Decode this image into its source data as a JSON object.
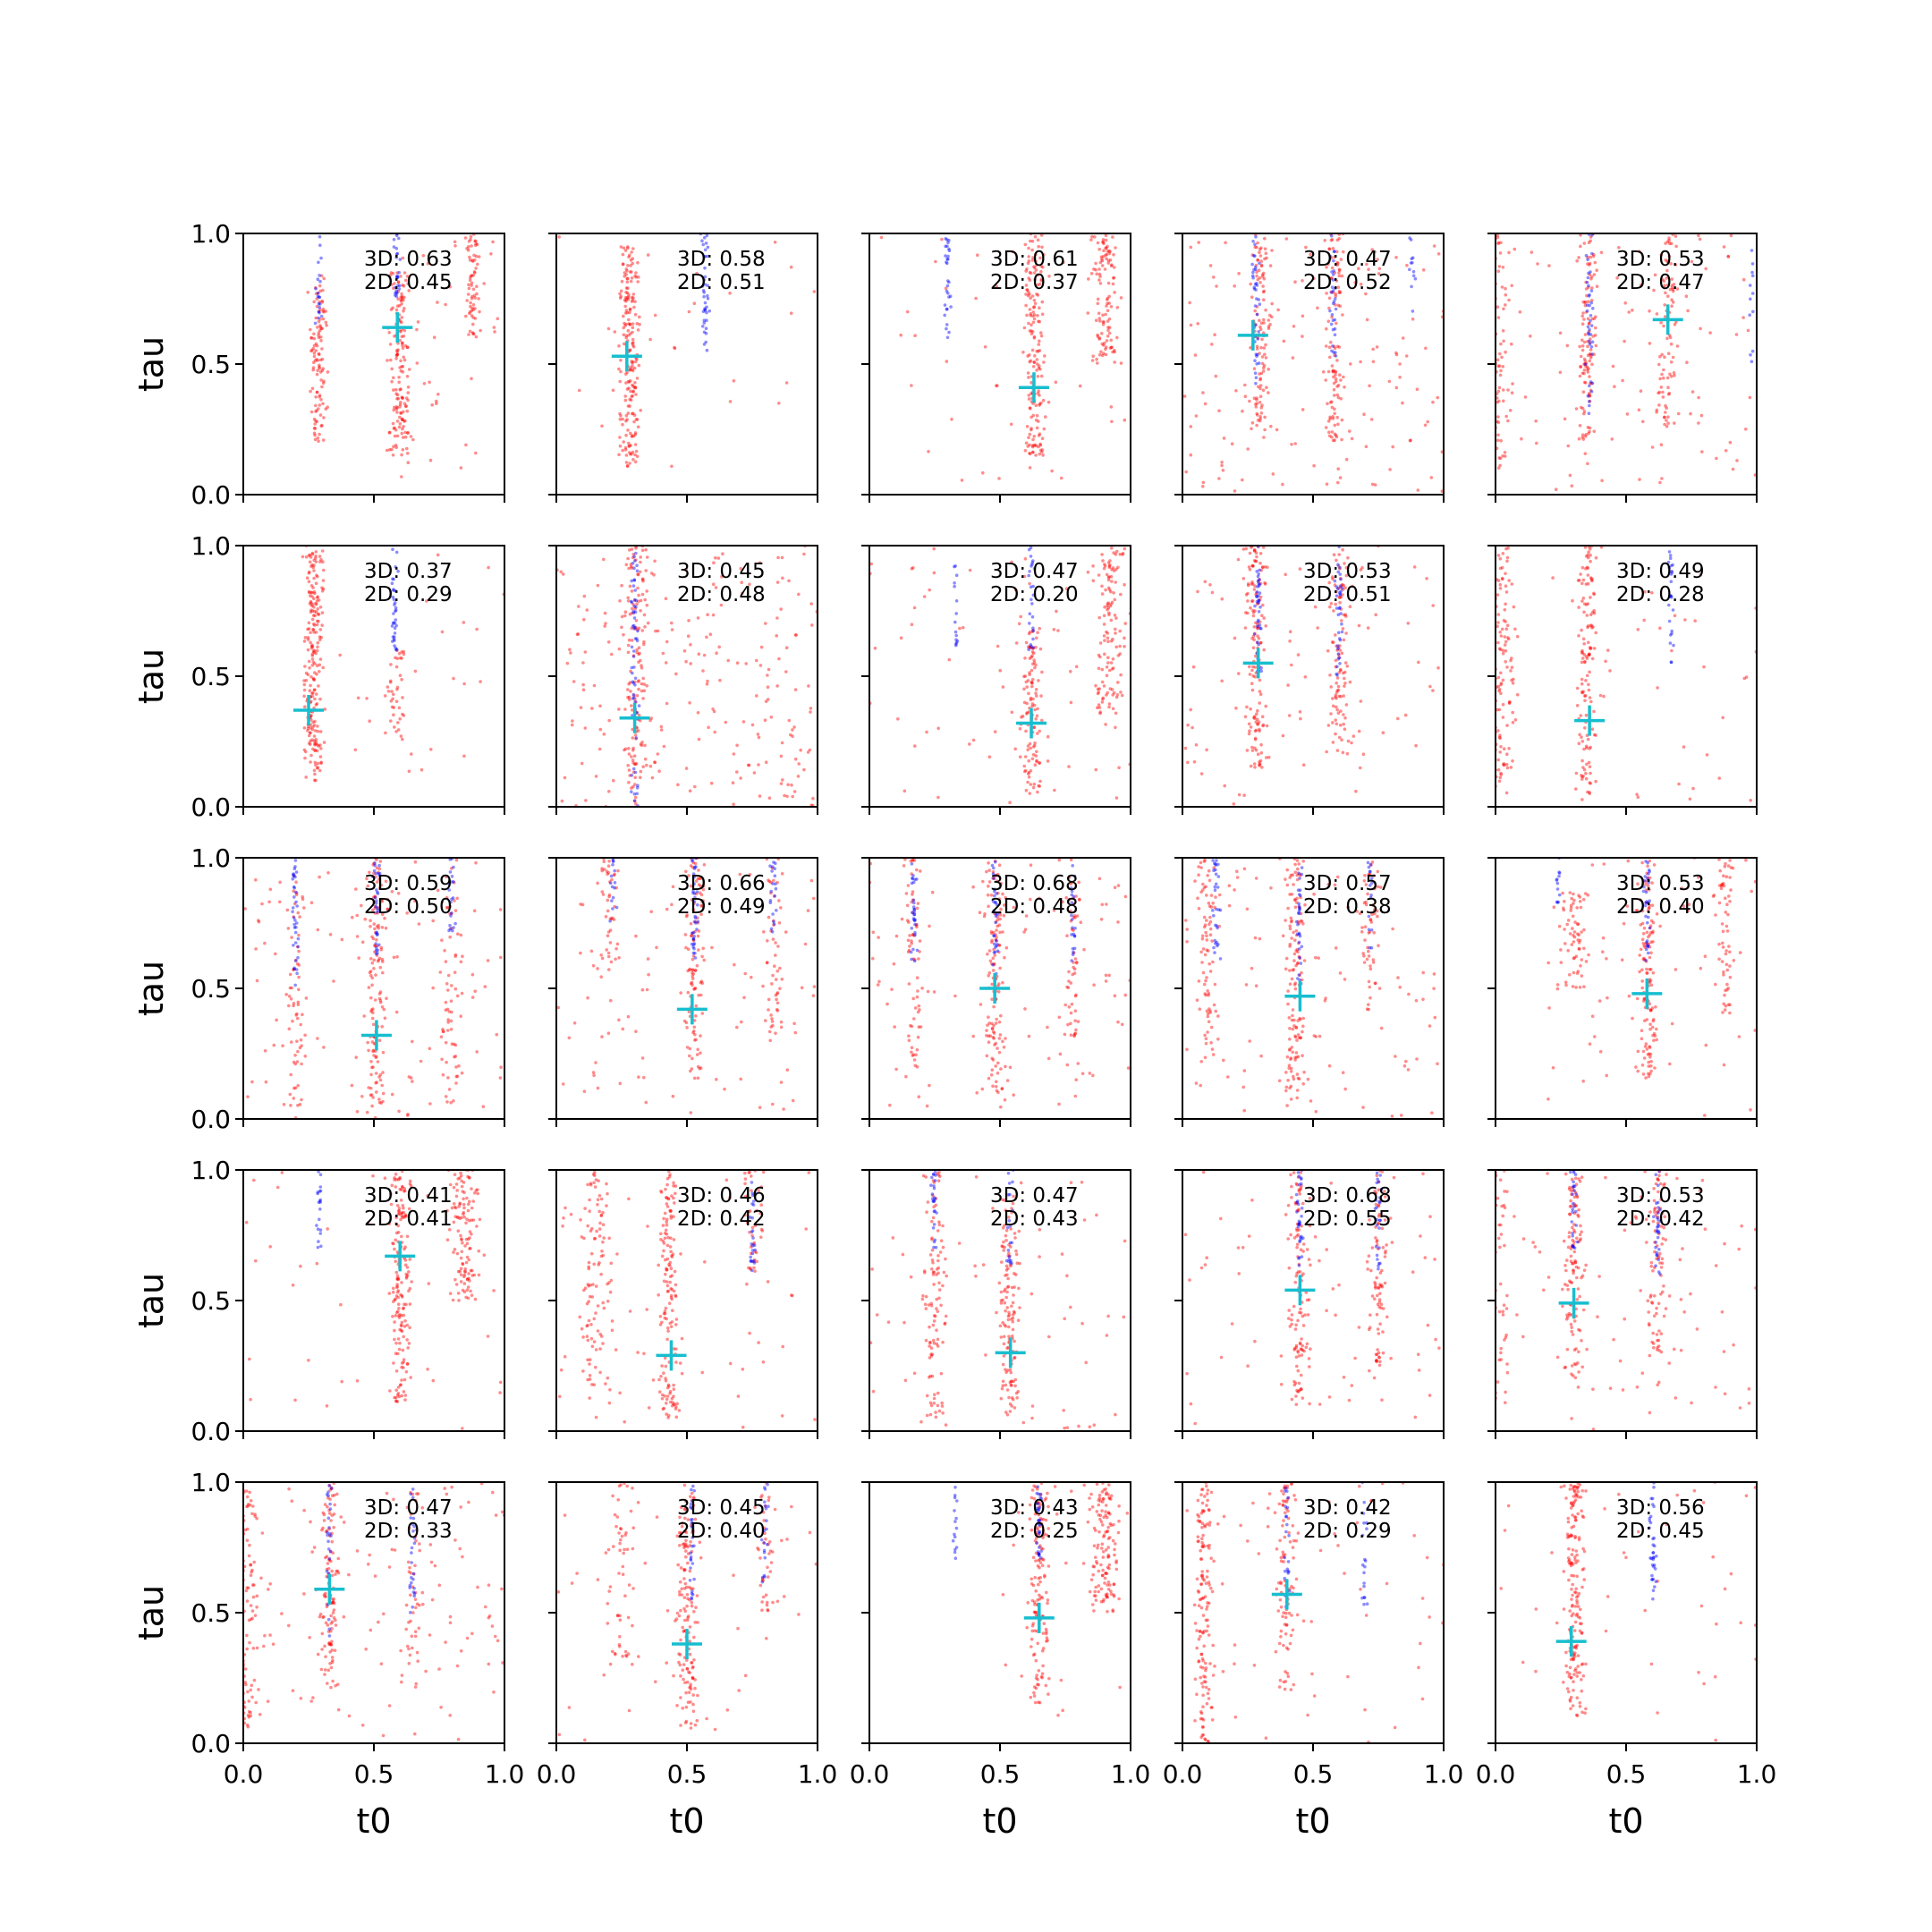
{
  "chart_data": {
    "type": "scatter",
    "layout": {
      "rows": 5,
      "cols": 5
    },
    "xlabel": "t0",
    "ylabel": "tau",
    "xlim": [
      0,
      1
    ],
    "ylim": [
      0,
      1
    ],
    "xticks": [
      "0.0",
      "0.5",
      "1.0"
    ],
    "yticks": [
      "0.0",
      "0.5",
      "1.0"
    ],
    "grid": false,
    "colors": {
      "red": "#ff0000",
      "blue": "#0000ff",
      "marker": "#17becf"
    },
    "panels": [
      {
        "a3d": "3D: 0.63",
        "a2d": "2D: 0.45",
        "marker": [
          0.59,
          0.64
        ],
        "red": [
          [
            0.29,
            0.2,
            0.85,
            1.0,
            110
          ],
          [
            0.6,
            0.15,
            0.85,
            1.0,
            150
          ],
          [
            0.88,
            0.6,
            1.0,
            0.8,
            60
          ]
        ],
        "blue": [
          [
            0.59,
            0.75,
            1.0,
            0.5,
            25
          ],
          [
            0.29,
            0.6,
            1.0,
            0.5,
            20
          ]
        ],
        "bg": [
          0.55,
          0.05,
          1.0,
          45
        ]
      },
      {
        "a3d": "3D: 0.58",
        "a2d": "2D: 0.51",
        "marker": [
          0.27,
          0.53
        ],
        "red": [
          [
            0.28,
            0.1,
            0.95,
            1.0,
            200
          ]
        ],
        "blue": [
          [
            0.57,
            0.55,
            1.0,
            0.8,
            40
          ]
        ],
        "bg": [
          0.0,
          0.1,
          1.0,
          25
        ]
      },
      {
        "a3d": "3D: 0.61",
        "a2d": "2D: 0.37",
        "marker": [
          0.63,
          0.41
        ],
        "red": [
          [
            0.63,
            0.15,
            1.0,
            1.0,
            170
          ],
          [
            0.9,
            0.5,
            1.0,
            1.5,
            110
          ]
        ],
        "blue": [
          [
            0.3,
            0.6,
            1.0,
            0.5,
            30
          ]
        ],
        "bg": [
          0.0,
          0.05,
          1.0,
          40
        ]
      },
      {
        "a3d": "3D: 0.47",
        "a2d": "2D: 0.52",
        "marker": [
          0.27,
          0.61
        ],
        "red": [
          [
            0.3,
            0.2,
            1.0,
            1.0,
            110
          ],
          [
            0.58,
            0.2,
            1.0,
            1.0,
            110
          ]
        ],
        "blue": [
          [
            0.28,
            0.4,
            1.0,
            0.6,
            40
          ],
          [
            0.58,
            0.5,
            1.0,
            0.6,
            30
          ],
          [
            0.88,
            0.7,
            1.0,
            0.5,
            12
          ]
        ],
        "bg": [
          0.0,
          0.0,
          1.0,
          130
        ]
      },
      {
        "a3d": "3D: 0.53",
        "a2d": "2D: 0.47",
        "marker": [
          0.66,
          0.67
        ],
        "red": [
          [
            0.35,
            0.2,
            1.0,
            1.0,
            110
          ],
          [
            0.66,
            0.25,
            1.0,
            1.0,
            80
          ],
          [
            0.02,
            0.1,
            1.0,
            1.0,
            60
          ]
        ],
        "blue": [
          [
            0.36,
            0.3,
            1.0,
            0.6,
            40
          ],
          [
            0.98,
            0.5,
            1.0,
            0.5,
            12
          ]
        ],
        "bg": [
          0.0,
          0.0,
          1.0,
          100
        ]
      },
      {
        "a3d": "3D: 0.37",
        "a2d": "2D: 0.29",
        "marker": [
          0.25,
          0.37
        ],
        "red": [
          [
            0.27,
            0.1,
            1.0,
            1.0,
            220
          ],
          [
            0.58,
            0.25,
            0.6,
            1.0,
            40
          ]
        ],
        "blue": [
          [
            0.58,
            0.6,
            1.0,
            0.5,
            35
          ]
        ],
        "bg": [
          0.2,
          0.1,
          1.0,
          25
        ]
      },
      {
        "a3d": "3D: 0.45",
        "a2d": "2D: 0.48",
        "marker": [
          0.3,
          0.34
        ],
        "red": [
          [
            0.3,
            0.0,
            1.0,
            1.2,
            130
          ]
        ],
        "blue": [
          [
            0.3,
            0.0,
            1.0,
            0.6,
            60
          ]
        ],
        "bg": [
          0.0,
          0.0,
          1.0,
          220
        ]
      },
      {
        "a3d": "3D: 0.47",
        "a2d": "2D: 0.20",
        "marker": [
          0.62,
          0.32
        ],
        "red": [
          [
            0.62,
            0.05,
            0.7,
            1.0,
            110
          ],
          [
            0.92,
            0.3,
            1.0,
            1.5,
            120
          ]
        ],
        "blue": [
          [
            0.62,
            0.6,
            1.0,
            0.5,
            25
          ],
          [
            0.33,
            0.6,
            0.95,
            0.3,
            15
          ]
        ],
        "bg": [
          0.0,
          0.0,
          1.0,
          70
        ]
      },
      {
        "a3d": "3D: 0.53",
        "a2d": "2D: 0.51",
        "marker": [
          0.29,
          0.55
        ],
        "red": [
          [
            0.28,
            0.15,
            1.0,
            1.0,
            140
          ],
          [
            0.6,
            0.2,
            1.0,
            1.0,
            100
          ]
        ],
        "blue": [
          [
            0.29,
            0.5,
            1.0,
            0.6,
            40
          ],
          [
            0.6,
            0.5,
            1.0,
            0.6,
            35
          ]
        ],
        "bg": [
          0.0,
          0.0,
          1.0,
          80
        ]
      },
      {
        "a3d": "3D: 0.49",
        "a2d": "2D: 0.28",
        "marker": [
          0.36,
          0.33
        ],
        "red": [
          [
            0.35,
            0.05,
            1.0,
            1.0,
            130
          ],
          [
            0.03,
            0.05,
            1.0,
            1.2,
            110
          ]
        ],
        "blue": [
          [
            0.67,
            0.55,
            1.0,
            0.4,
            25
          ]
        ],
        "bg": [
          0.0,
          0.0,
          1.0,
          40
        ]
      },
      {
        "a3d": "3D: 0.59",
        "a2d": "2D: 0.50",
        "marker": [
          0.51,
          0.32
        ],
        "red": [
          [
            0.51,
            0.05,
            1.0,
            1.0,
            130
          ],
          [
            0.2,
            0.05,
            1.0,
            1.0,
            60
          ],
          [
            0.8,
            0.05,
            1.0,
            1.0,
            60
          ]
        ],
        "blue": [
          [
            0.2,
            0.5,
            1.0,
            0.5,
            35
          ],
          [
            0.51,
            0.6,
            1.0,
            0.5,
            30
          ],
          [
            0.8,
            0.7,
            1.0,
            0.5,
            20
          ]
        ],
        "bg": [
          0.0,
          0.0,
          1.0,
          110
        ]
      },
      {
        "a3d": "3D: 0.66",
        "a2d": "2D: 0.49",
        "marker": [
          0.52,
          0.42
        ],
        "red": [
          [
            0.53,
            0.15,
            1.0,
            1.0,
            110
          ],
          [
            0.83,
            0.3,
            1.0,
            1.0,
            50
          ],
          [
            0.2,
            0.6,
            1.0,
            1.0,
            40
          ]
        ],
        "blue": [
          [
            0.53,
            0.6,
            1.0,
            0.5,
            35
          ],
          [
            0.83,
            0.7,
            1.0,
            0.5,
            20
          ],
          [
            0.22,
            0.7,
            1.0,
            0.5,
            15
          ]
        ],
        "bg": [
          0.0,
          0.0,
          1.0,
          80
        ]
      },
      {
        "a3d": "3D: 0.68",
        "a2d": "2D: 0.48",
        "marker": [
          0.48,
          0.5
        ],
        "red": [
          [
            0.48,
            0.1,
            1.0,
            1.0,
            120
          ],
          [
            0.17,
            0.2,
            1.0,
            1.0,
            60
          ],
          [
            0.78,
            0.3,
            1.0,
            1.0,
            50
          ]
        ],
        "blue": [
          [
            0.17,
            0.6,
            1.0,
            0.5,
            30
          ],
          [
            0.48,
            0.55,
            1.0,
            0.5,
            30
          ],
          [
            0.78,
            0.6,
            1.0,
            0.5,
            20
          ]
        ],
        "bg": [
          0.0,
          0.0,
          1.0,
          100
        ]
      },
      {
        "a3d": "3D: 0.57",
        "a2d": "2D: 0.38",
        "marker": [
          0.45,
          0.47
        ],
        "red": [
          [
            0.43,
            0.05,
            1.0,
            1.0,
            130
          ],
          [
            0.1,
            0.2,
            1.0,
            1.2,
            80
          ],
          [
            0.72,
            0.4,
            1.0,
            1.0,
            50
          ]
        ],
        "blue": [
          [
            0.13,
            0.6,
            1.0,
            0.5,
            30
          ],
          [
            0.45,
            0.5,
            1.0,
            0.5,
            30
          ],
          [
            0.72,
            0.65,
            1.0,
            0.5,
            15
          ]
        ],
        "bg": [
          0.0,
          0.0,
          1.0,
          90
        ]
      },
      {
        "a3d": "3D: 0.53",
        "a2d": "2D: 0.40",
        "marker": [
          0.58,
          0.48
        ],
        "red": [
          [
            0.58,
            0.15,
            1.0,
            1.0,
            130
          ],
          [
            0.88,
            0.4,
            1.0,
            1.0,
            60
          ],
          [
            0.3,
            0.5,
            0.9,
            1.5,
            60
          ]
        ],
        "blue": [
          [
            0.58,
            0.6,
            1.0,
            0.5,
            30
          ],
          [
            0.24,
            0.8,
            1.0,
            0.3,
            12
          ]
        ],
        "bg": [
          0.15,
          0.0,
          1.0,
          60
        ]
      },
      {
        "a3d": "3D: 0.41",
        "a2d": "2D: 0.41",
        "marker": [
          0.6,
          0.67
        ],
        "red": [
          [
            0.6,
            0.1,
            1.0,
            1.0,
            170
          ],
          [
            0.85,
            0.5,
            1.0,
            1.5,
            120
          ]
        ],
        "blue": [
          [
            0.29,
            0.7,
            1.0,
            0.4,
            20
          ]
        ],
        "bg": [
          0.0,
          0.0,
          1.0,
          40
        ]
      },
      {
        "a3d": "3D: 0.46",
        "a2d": "2D: 0.42",
        "marker": [
          0.44,
          0.29
        ],
        "red": [
          [
            0.43,
            0.05,
            1.0,
            1.0,
            140
          ],
          [
            0.15,
            0.1,
            1.0,
            1.5,
            100
          ],
          [
            0.75,
            0.6,
            1.0,
            1.0,
            40
          ]
        ],
        "blue": [
          [
            0.75,
            0.6,
            1.0,
            0.5,
            25
          ]
        ],
        "bg": [
          0.0,
          0.0,
          1.0,
          60
        ]
      },
      {
        "a3d": "3D: 0.47",
        "a2d": "2D: 0.43",
        "marker": [
          0.54,
          0.3
        ],
        "red": [
          [
            0.54,
            0.05,
            0.9,
            1.0,
            130
          ],
          [
            0.25,
            0.05,
            1.0,
            1.2,
            100
          ]
        ],
        "blue": [
          [
            0.25,
            0.7,
            1.0,
            0.5,
            25
          ],
          [
            0.54,
            0.6,
            1.0,
            0.5,
            20
          ]
        ],
        "bg": [
          0.0,
          0.0,
          1.0,
          60
        ]
      },
      {
        "a3d": "3D: 0.68",
        "a2d": "2D: 0.55",
        "marker": [
          0.45,
          0.54
        ],
        "red": [
          [
            0.45,
            0.1,
            1.0,
            1.0,
            110
          ],
          [
            0.75,
            0.2,
            1.0,
            1.0,
            80
          ]
        ],
        "blue": [
          [
            0.45,
            0.6,
            1.0,
            0.5,
            30
          ],
          [
            0.75,
            0.6,
            1.0,
            0.5,
            25
          ]
        ],
        "bg": [
          0.0,
          0.0,
          1.0,
          70
        ]
      },
      {
        "a3d": "3D: 0.53",
        "a2d": "2D: 0.42",
        "marker": [
          0.3,
          0.49
        ],
        "red": [
          [
            0.3,
            0.2,
            1.0,
            1.0,
            110
          ],
          [
            0.62,
            0.3,
            1.0,
            1.0,
            80
          ],
          [
            0.02,
            0.1,
            1.0,
            1.0,
            40
          ]
        ],
        "blue": [
          [
            0.3,
            0.7,
            1.0,
            0.5,
            25
          ],
          [
            0.62,
            0.6,
            1.0,
            0.5,
            30
          ]
        ],
        "bg": [
          0.0,
          0.0,
          1.0,
          80
        ]
      },
      {
        "a3d": "3D: 0.47",
        "a2d": "2D: 0.33",
        "marker": [
          0.33,
          0.59
        ],
        "red": [
          [
            0.33,
            0.2,
            1.0,
            1.0,
            110
          ],
          [
            0.02,
            0.05,
            1.0,
            1.0,
            80
          ],
          [
            0.65,
            0.3,
            1.0,
            1.0,
            40
          ]
        ],
        "blue": [
          [
            0.33,
            0.4,
            1.0,
            0.5,
            25
          ],
          [
            0.65,
            0.5,
            1.0,
            0.5,
            25
          ]
        ],
        "bg": [
          0.0,
          0.0,
          1.0,
          110
        ]
      },
      {
        "a3d": "3D: 0.45",
        "a2d": "2D: 0.40",
        "marker": [
          0.5,
          0.38
        ],
        "red": [
          [
            0.5,
            0.05,
            1.0,
            1.0,
            140
          ],
          [
            0.8,
            0.5,
            1.0,
            1.0,
            40
          ],
          [
            0.25,
            0.3,
            1.0,
            1.5,
            50
          ]
        ],
        "blue": [
          [
            0.52,
            0.55,
            1.0,
            0.5,
            30
          ],
          [
            0.8,
            0.6,
            1.0,
            0.5,
            20
          ]
        ],
        "bg": [
          0.0,
          0.0,
          1.0,
          50
        ]
      },
      {
        "a3d": "3D: 0.43",
        "a2d": "2D: 0.25",
        "marker": [
          0.65,
          0.48
        ],
        "red": [
          [
            0.65,
            0.15,
            1.0,
            1.0,
            130
          ],
          [
            0.9,
            0.5,
            1.0,
            1.5,
            130
          ]
        ],
        "blue": [
          [
            0.33,
            0.7,
            1.0,
            0.3,
            15
          ],
          [
            0.65,
            0.7,
            1.0,
            0.5,
            30
          ]
        ],
        "bg": [
          0.4,
          0.1,
          1.0,
          25
        ]
      },
      {
        "a3d": "3D: 0.42",
        "a2d": "2D: 0.29",
        "marker": [
          0.4,
          0.57
        ],
        "red": [
          [
            0.08,
            0.0,
            1.0,
            1.0,
            140
          ],
          [
            0.4,
            0.2,
            1.0,
            1.0,
            90
          ]
        ],
        "blue": [
          [
            0.4,
            0.5,
            1.0,
            0.5,
            25
          ],
          [
            0.7,
            0.5,
            1.0,
            0.5,
            20
          ]
        ],
        "bg": [
          0.0,
          0.0,
          1.0,
          60
        ]
      },
      {
        "a3d": "3D: 0.56",
        "a2d": "2D: 0.45",
        "marker": [
          0.29,
          0.39
        ],
        "red": [
          [
            0.3,
            0.1,
            1.0,
            1.0,
            180
          ]
        ],
        "blue": [
          [
            0.6,
            0.55,
            1.0,
            0.5,
            35
          ]
        ],
        "bg": [
          0.0,
          0.0,
          1.0,
          40
        ]
      }
    ]
  }
}
